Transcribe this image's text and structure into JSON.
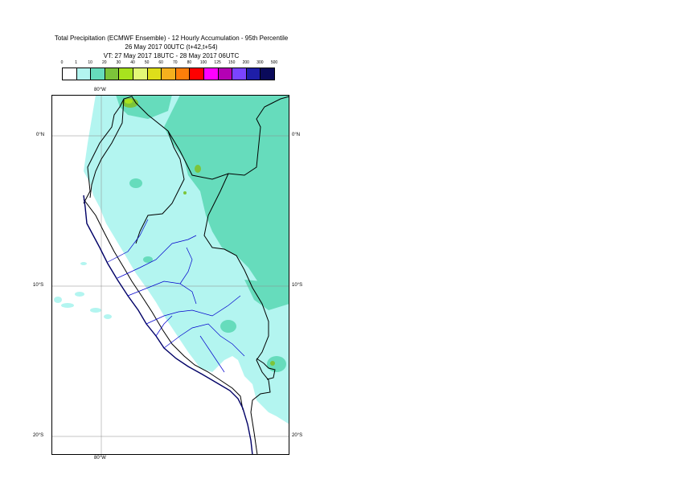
{
  "title": {
    "line1": "Total Precipitation (ECMWF Ensemble) - 12 Hourly Accumulation - 95th Percentile",
    "line2": "26 May 2017 00UTC (t+42,t+54)",
    "line3": "VT: 27 May 2017 18UTC - 28 May 2017 06UTC"
  },
  "legend": {
    "tick_labels": [
      "0",
      "1",
      "10",
      "20",
      "30",
      "40",
      "50",
      "60",
      "70",
      "80",
      "100",
      "125",
      "150",
      "200",
      "300",
      "500"
    ],
    "colors": [
      "#ffffff",
      "#b3f5f0",
      "#66dcbc",
      "#7cc43a",
      "#a8e21e",
      "#e3f877",
      "#dede1a",
      "#f5b01e",
      "#ff7f0a",
      "#ff0000",
      "#ff00ff",
      "#b400b4",
      "#7a44ff",
      "#1e1ea8",
      "#0a0a5a"
    ]
  },
  "axes": {
    "lon_top": "80°W",
    "lon_bottom": "80°W",
    "lat_0_left": "0°N",
    "lat_0_right": "0°N",
    "lat_10_left": "10°S",
    "lat_10_right": "10°S",
    "lat_20_left": "20°S",
    "lat_20_right": "20°S"
  },
  "map": {
    "region": "Peru and surroundings",
    "light_precip_color": "#b3f5f0",
    "moderate_precip_color": "#66dcbc",
    "heavy_precip_color": "#a8e21e",
    "border_color": "#000000",
    "region_border_color": "#0000cc"
  }
}
